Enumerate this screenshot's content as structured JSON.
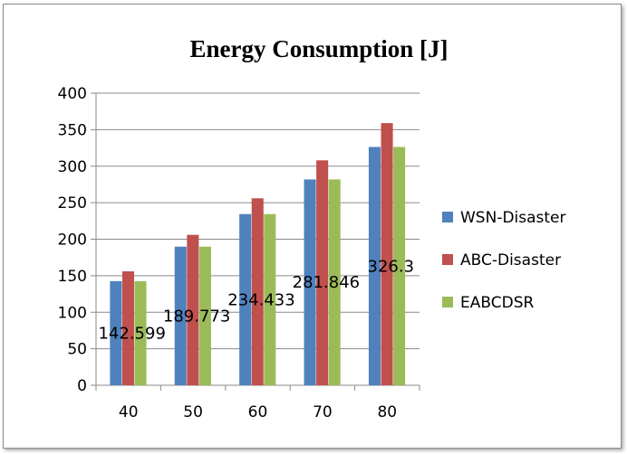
{
  "chart_data": {
    "type": "bar",
    "title": "Energy Consumption [J]",
    "categories": [
      "40",
      "50",
      "60",
      "70",
      "80"
    ],
    "series": [
      {
        "name": "WSN-Disaster",
        "color": "#4f81bd",
        "values": [
          142.6,
          189.8,
          234.4,
          281.8,
          326.3
        ]
      },
      {
        "name": "ABC-Disaster",
        "color": "#c0504d",
        "values": [
          156,
          206,
          256,
          308,
          359
        ]
      },
      {
        "name": "EABCDSR",
        "color": "#9bbb59",
        "values": [
          142.599,
          189.773,
          234.433,
          281.846,
          326.3
        ]
      }
    ],
    "data_labels": [
      "142.599",
      "189.773",
      "234.433",
      "281.846",
      "326.3"
    ],
    "ylim": [
      0,
      400
    ],
    "yticks": [
      "0",
      "50",
      "100",
      "150",
      "200",
      "250",
      "300",
      "350",
      "400"
    ],
    "grid": true,
    "legend_position": "right",
    "xlabel": "",
    "ylabel": ""
  }
}
